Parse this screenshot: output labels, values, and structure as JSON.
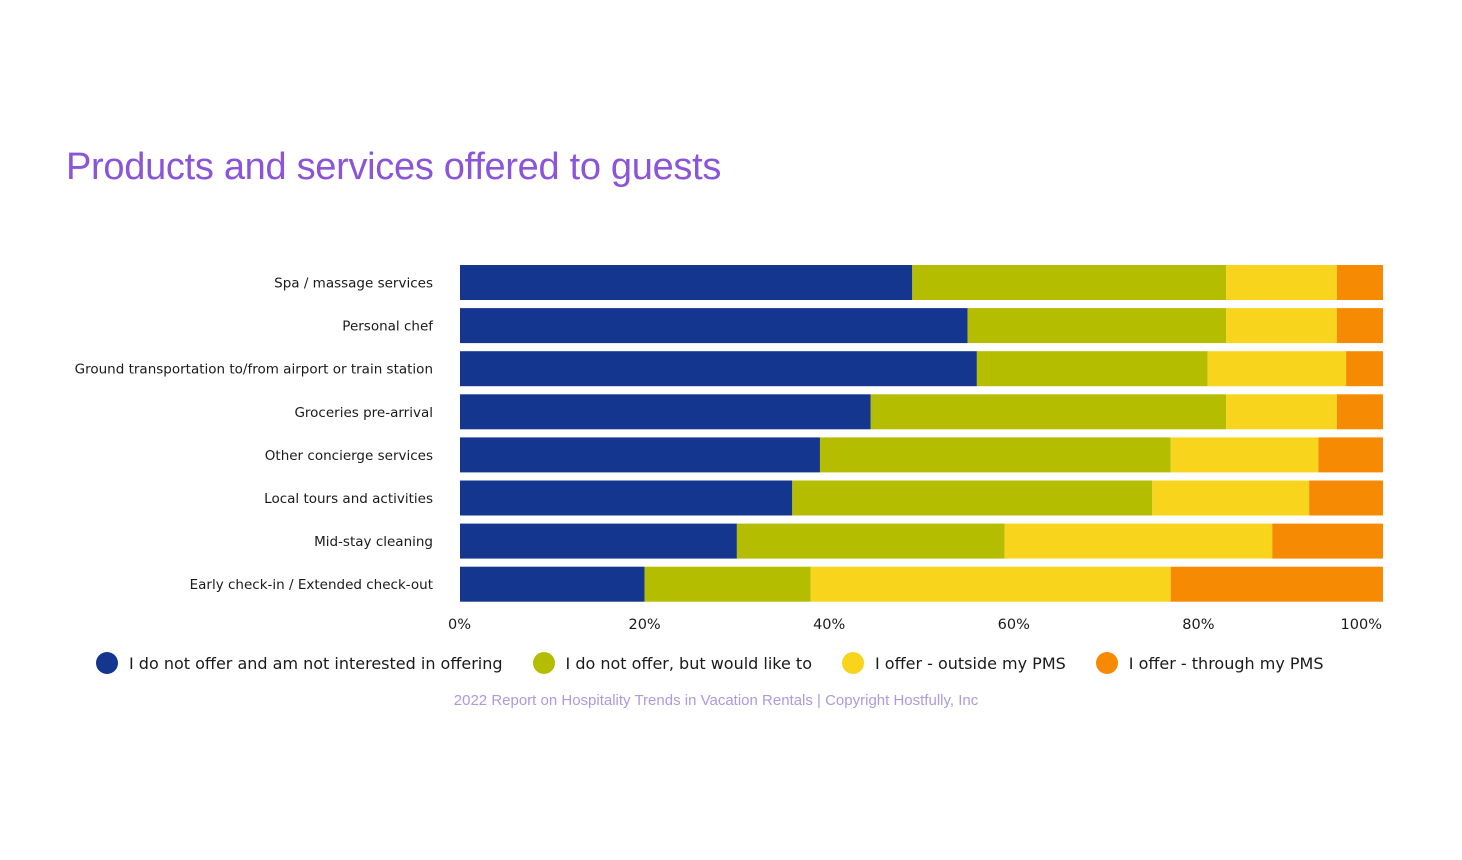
{
  "chart_data": {
    "type": "bar",
    "orientation": "horizontal",
    "stacked": true,
    "title": "Products and services offered to guests",
    "categories": [
      "Spa / massage services",
      "Personal chef",
      "Ground transportation to/from airport or train station",
      "Groceries pre-arrival",
      "Other concierge services",
      "Local tours and activities",
      "Mid-stay cleaning",
      "Early check-in / Extended check-out"
    ],
    "series": [
      {
        "name": "I do not offer and am not interested in offering",
        "color": "#15368f",
        "values": [
          49,
          55,
          56,
          44.5,
          39,
          36,
          30,
          20
        ]
      },
      {
        "name": "I do not offer, but would like to",
        "color": "#b5bd00",
        "values": [
          34,
          28,
          25,
          38.5,
          38,
          39,
          29,
          18
        ]
      },
      {
        "name": "I offer - outside my PMS",
        "color": "#f8d41d",
        "values": [
          12,
          12,
          15,
          12,
          16,
          17,
          29,
          39
        ]
      },
      {
        "name": "I offer - through my PMS",
        "color": "#f68a03",
        "values": [
          5,
          5,
          4,
          5,
          7,
          8,
          12,
          23
        ]
      }
    ],
    "x_ticks": [
      "0%",
      "20%",
      "40%",
      "60%",
      "80%",
      "100%"
    ],
    "xlim": [
      0,
      100
    ],
    "grid": false,
    "legend_position": "bottom"
  },
  "source_note": "2022 Report on Hospitality Trends in Vacation Rentals | Copyright Hostfully, Inc"
}
